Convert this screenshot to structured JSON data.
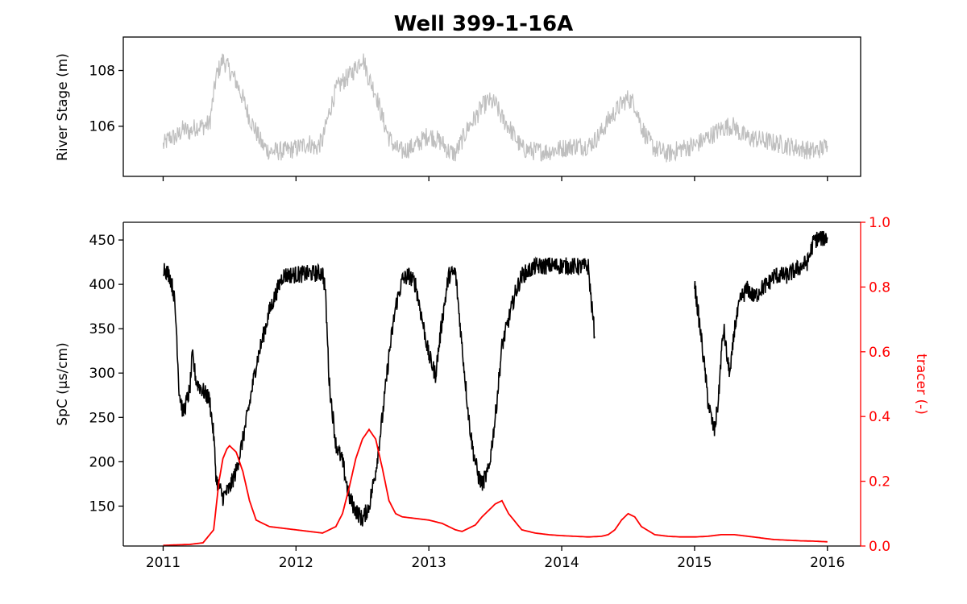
{
  "chart_data": [
    {
      "type": "line",
      "panel": "top",
      "title": "Well 399-1-16A",
      "xlabel": "",
      "ylabel": "River Stage (m)",
      "xlim": [
        2010.7,
        2016.25
      ],
      "ylim": [
        104.2,
        109.2
      ],
      "x_ticks": [
        2011,
        2012,
        2013,
        2014,
        2015,
        2016
      ],
      "y_ticks": [
        106,
        108
      ],
      "y_tick_labels": [
        "106",
        "108"
      ],
      "grid": false,
      "series": [
        {
          "name": "River Stage",
          "color": "#bfbfbf",
          "noise": 0.35,
          "x": [
            2011.0,
            2011.05,
            2011.1,
            2011.15,
            2011.2,
            2011.25,
            2011.3,
            2011.35,
            2011.4,
            2011.45,
            2011.5,
            2011.55,
            2011.6,
            2011.65,
            2011.7,
            2011.75,
            2011.8,
            2011.9,
            2012.0,
            2012.1,
            2012.15,
            2012.2,
            2012.25,
            2012.3,
            2012.35,
            2012.4,
            2012.45,
            2012.5,
            2012.55,
            2012.6,
            2012.65,
            2012.7,
            2012.75,
            2012.8,
            2012.9,
            2013.0,
            2013.1,
            2013.15,
            2013.2,
            2013.25,
            2013.3,
            2013.35,
            2013.4,
            2013.45,
            2013.5,
            2013.55,
            2013.6,
            2013.65,
            2013.7,
            2013.8,
            2013.9,
            2014.0,
            2014.1,
            2014.2,
            2014.25,
            2014.3,
            2014.35,
            2014.4,
            2014.45,
            2014.5,
            2014.55,
            2014.6,
            2014.65,
            2014.7,
            2014.8,
            2014.9,
            2015.0,
            2015.1,
            2015.2,
            2015.25,
            2015.3,
            2015.35,
            2015.4,
            2015.5,
            2015.6,
            2015.7,
            2015.8,
            2015.9,
            2016.0
          ],
          "values": [
            105.3,
            105.6,
            105.6,
            105.9,
            105.8,
            106.0,
            106.0,
            106.1,
            107.8,
            108.4,
            108.0,
            107.6,
            107.0,
            106.3,
            105.8,
            105.3,
            105.1,
            105.1,
            105.2,
            105.4,
            105.2,
            105.5,
            106.5,
            107.3,
            107.6,
            107.8,
            108.1,
            108.5,
            107.7,
            107.2,
            106.3,
            105.6,
            105.2,
            105.1,
            105.3,
            105.7,
            105.4,
            105.1,
            105.0,
            105.5,
            106.0,
            106.3,
            106.7,
            106.9,
            106.8,
            106.3,
            106.0,
            105.6,
            105.2,
            105.1,
            105.1,
            105.2,
            105.3,
            105.3,
            105.5,
            105.8,
            106.2,
            106.5,
            106.8,
            107.0,
            106.8,
            106.0,
            105.5,
            105.2,
            105.0,
            105.2,
            105.3,
            105.6,
            105.9,
            106.0,
            106.0,
            105.7,
            105.6,
            105.5,
            105.4,
            105.3,
            105.2,
            105.1,
            105.3
          ]
        }
      ]
    },
    {
      "type": "line",
      "panel": "bottom",
      "title": "",
      "xlabel": "",
      "ylabel": "SpC (µs/cm)",
      "y2label": "tracer (-)",
      "xlim": [
        2010.7,
        2016.25
      ],
      "ylim": [
        105,
        470
      ],
      "y2lim": [
        0.0,
        1.0
      ],
      "x_ticks": [
        2011,
        2012,
        2013,
        2014,
        2015,
        2016
      ],
      "x_tick_labels": [
        "2011",
        "2012",
        "2013",
        "2014",
        "2015",
        "2016"
      ],
      "y_ticks": [
        150,
        200,
        250,
        300,
        350,
        400,
        450
      ],
      "y_tick_labels": [
        "150",
        "200",
        "250",
        "300",
        "350",
        "400",
        "450"
      ],
      "y2_ticks": [
        0.0,
        0.2,
        0.4,
        0.6,
        0.8,
        1.0
      ],
      "y2_tick_labels": [
        "0.0",
        "0.2",
        "0.4",
        "0.6",
        "0.8",
        "1.0"
      ],
      "grid": false,
      "series": [
        {
          "name": "SpC",
          "axis": "left",
          "color": "#000000",
          "noise": 10,
          "segments": [
            {
              "x": [
                2011.0,
                2011.05,
                2011.08,
                2011.1,
                2011.12,
                2011.15,
                2011.2,
                2011.22,
                2011.25,
                2011.3,
                2011.35,
                2011.38,
                2011.4,
                2011.45,
                2011.5,
                2011.55,
                2011.6,
                2011.65,
                2011.7,
                2011.8,
                2011.9,
                2012.0,
                2012.1,
                2012.2,
                2012.22,
                2012.25,
                2012.3,
                2012.35,
                2012.4,
                2012.45,
                2012.5,
                2012.55,
                2012.6,
                2012.65,
                2012.7,
                2012.75,
                2012.8,
                2012.85,
                2012.9,
                2012.95,
                2013.0,
                2013.05,
                2013.1,
                2013.15,
                2013.2,
                2013.25,
                2013.3,
                2013.33,
                2013.37,
                2013.4,
                2013.45,
                2013.5,
                2013.55,
                2013.6,
                2013.65,
                2013.7,
                2013.8,
                2013.9,
                2014.0,
                2014.1,
                2014.15,
                2014.2,
                2014.22,
                2014.25
              ],
              "values": [
                420,
                410,
                390,
                350,
                280,
                255,
                280,
                320,
                290,
                280,
                270,
                230,
                180,
                160,
                170,
                190,
                225,
                265,
                310,
                370,
                410,
                411,
                412,
                413,
                395,
                290,
                220,
                200,
                160,
                145,
                135,
                150,
                190,
                250,
                320,
                375,
                405,
                410,
                400,
                360,
                320,
                298,
                360,
                410,
                414,
                330,
                250,
                215,
                185,
                175,
                190,
                250,
                330,
                360,
                390,
                410,
                420,
                421,
                421,
                420,
                420,
                420,
                385,
                340
              ]
            },
            {
              "x": [
                2015.0,
                2015.05,
                2015.08,
                2015.1,
                2015.13,
                2015.15,
                2015.18,
                2015.2,
                2015.22,
                2015.25,
                2015.27,
                2015.3,
                2015.35,
                2015.4,
                2015.45,
                2015.5,
                2015.55,
                2015.6,
                2015.7,
                2015.8,
                2015.85,
                2015.9,
                2015.95,
                2016.0
              ],
              "values": [
                400,
                340,
                300,
                270,
                245,
                235,
                270,
                320,
                350,
                310,
                300,
                350,
                385,
                395,
                385,
                395,
                400,
                410,
                410,
                420,
                425,
                450,
                452,
                453
              ]
            }
          ]
        },
        {
          "name": "tracer",
          "axis": "right",
          "color": "#ff0000",
          "noise": 0,
          "x": [
            2011.0,
            2011.2,
            2011.3,
            2011.38,
            2011.42,
            2011.45,
            2011.48,
            2011.5,
            2011.55,
            2011.6,
            2011.65,
            2011.7,
            2011.75,
            2011.8,
            2011.9,
            2012.0,
            2012.1,
            2012.2,
            2012.3,
            2012.35,
            2012.4,
            2012.45,
            2012.5,
            2012.55,
            2012.6,
            2012.65,
            2012.7,
            2012.75,
            2012.8,
            2012.9,
            2013.0,
            2013.1,
            2013.2,
            2013.25,
            2013.3,
            2013.35,
            2013.4,
            2013.45,
            2013.5,
            2013.55,
            2013.6,
            2013.7,
            2013.8,
            2013.9,
            2014.0,
            2014.1,
            2014.2,
            2014.3,
            2014.35,
            2014.4,
            2014.45,
            2014.5,
            2014.55,
            2014.6,
            2014.7,
            2014.8,
            2014.9,
            2015.0,
            2015.1,
            2015.2,
            2015.3,
            2015.4,
            2015.5,
            2015.6,
            2015.7,
            2015.8,
            2015.9,
            2016.0
          ],
          "values": [
            0.002,
            0.005,
            0.01,
            0.05,
            0.2,
            0.27,
            0.3,
            0.31,
            0.29,
            0.23,
            0.14,
            0.08,
            0.07,
            0.06,
            0.055,
            0.05,
            0.045,
            0.04,
            0.06,
            0.1,
            0.18,
            0.27,
            0.33,
            0.36,
            0.33,
            0.24,
            0.14,
            0.1,
            0.09,
            0.085,
            0.08,
            0.07,
            0.05,
            0.045,
            0.055,
            0.065,
            0.09,
            0.11,
            0.13,
            0.14,
            0.1,
            0.05,
            0.04,
            0.035,
            0.032,
            0.03,
            0.028,
            0.03,
            0.035,
            0.05,
            0.08,
            0.1,
            0.09,
            0.06,
            0.035,
            0.03,
            0.028,
            0.028,
            0.03,
            0.035,
            0.035,
            0.03,
            0.025,
            0.02,
            0.018,
            0.016,
            0.015,
            0.013
          ]
        }
      ]
    }
  ]
}
